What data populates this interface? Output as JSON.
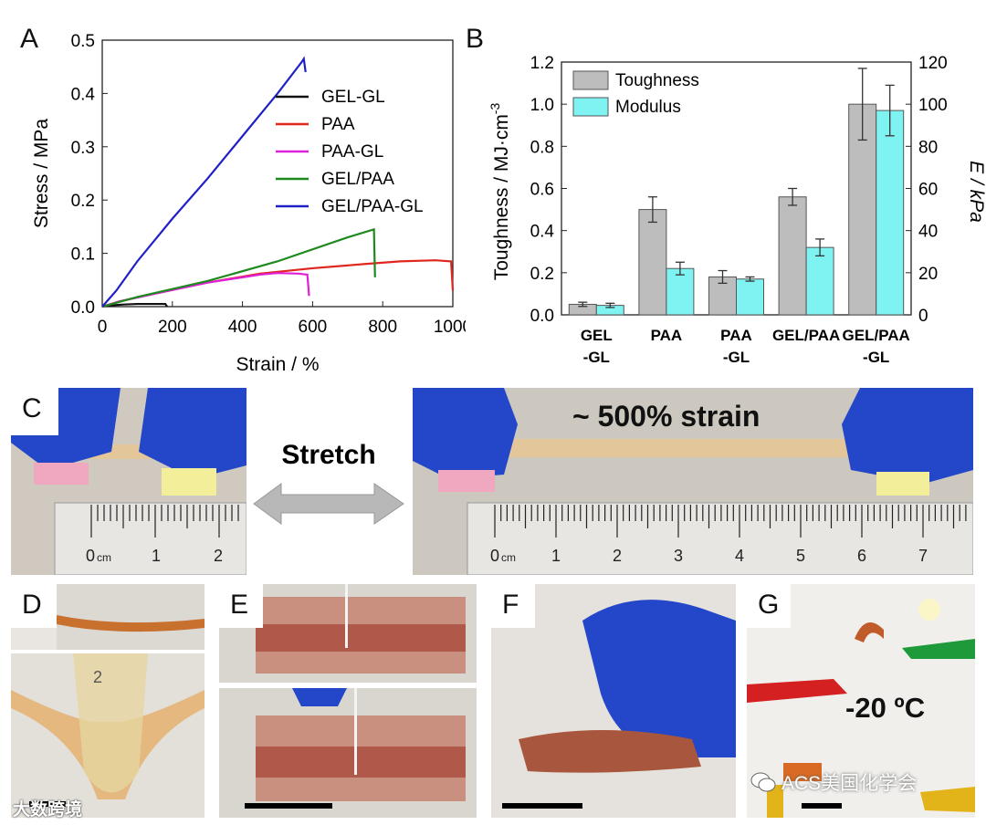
{
  "panels": {
    "A": "A",
    "B": "B",
    "C": "C",
    "D": "D",
    "E": "E",
    "F": "F",
    "G": "G"
  },
  "chart_data": [
    {
      "type": "line",
      "xlabel": "Strain / %",
      "ylabel": "Stress / MPa",
      "xlim": [
        0,
        1000
      ],
      "ylim": [
        0,
        0.5
      ],
      "xticks": [
        0,
        200,
        400,
        600,
        800,
        1000
      ],
      "yticks": [
        0.0,
        0.1,
        0.2,
        0.3,
        0.4,
        0.5
      ],
      "legend_position": "right",
      "series": [
        {
          "name": "GEL-GL",
          "color": "#111111",
          "x": [
            0,
            20,
            60,
            100,
            140,
            180,
            185
          ],
          "y": [
            0,
            0.002,
            0.004,
            0.005,
            0.005,
            0.005,
            0
          ]
        },
        {
          "name": "PAA",
          "color": "#e0261e",
          "x": [
            0,
            50,
            150,
            300,
            450,
            600,
            750,
            850,
            950,
            995,
            1000
          ],
          "y": [
            0,
            0.01,
            0.025,
            0.045,
            0.062,
            0.072,
            0.08,
            0.085,
            0.087,
            0.085,
            0.03
          ]
        },
        {
          "name": "PAA-GL",
          "color": "#e020d8",
          "x": [
            0,
            50,
            150,
            300,
            400,
            450,
            500,
            560,
            585,
            590
          ],
          "y": [
            0,
            0.01,
            0.024,
            0.045,
            0.055,
            0.06,
            0.063,
            0.062,
            0.06,
            0.02
          ]
        },
        {
          "name": "GEL/PAA",
          "color": "#1e8a1e",
          "x": [
            0,
            100,
            300,
            500,
            700,
            775,
            778
          ],
          "y": [
            0,
            0.018,
            0.048,
            0.085,
            0.13,
            0.145,
            0.055
          ]
        },
        {
          "name": "GEL/PAA-GL",
          "color": "#2020c8",
          "x": [
            0,
            40,
            100,
            200,
            300,
            400,
            500,
            570,
            575,
            580
          ],
          "y": [
            0,
            0.03,
            0.085,
            0.165,
            0.24,
            0.32,
            0.4,
            0.46,
            0.465,
            0.44
          ]
        }
      ]
    },
    {
      "type": "bar",
      "categories": [
        "GEL\n-GL",
        "PAA",
        "PAA\n-GL",
        "GEL/PAA",
        "GEL/PAA\n-GL"
      ],
      "ylabel": "Toughness / MJ·cm",
      "ylabel_sup": "-3",
      "y2label": "E / kPa",
      "ylim": [
        0,
        1.2
      ],
      "y2lim": [
        0,
        120
      ],
      "yticks": [
        0.0,
        0.2,
        0.4,
        0.6,
        0.8,
        1.0,
        1.2
      ],
      "y2ticks": [
        0,
        20,
        40,
        60,
        80,
        100,
        120
      ],
      "legend_position": "top-left",
      "series": [
        {
          "name": "Toughness",
          "color": "#bdbdbd",
          "axis": "left",
          "values": [
            0.05,
            0.5,
            0.18,
            0.56,
            1.0
          ],
          "errors": [
            0.01,
            0.06,
            0.03,
            0.04,
            0.17
          ]
        },
        {
          "name": "Modulus",
          "color": "#7ff2f2",
          "axis": "right",
          "values": [
            4.5,
            22,
            17,
            32,
            97
          ],
          "errors": [
            1,
            3,
            1,
            4,
            12
          ]
        }
      ]
    }
  ],
  "photos": {
    "c_center_label": "Stretch",
    "c_right_label": "~ 500% strain",
    "ruler_unit": "cm",
    "ruler_left_numbers": [
      "1",
      "2"
    ],
    "ruler_right_numbers": [
      "1",
      "2",
      "3",
      "4",
      "5",
      "6",
      "7"
    ],
    "ruler_zero": "0",
    "tube_mark": "2",
    "g_label": "-20 ºC",
    "watermark": "ACS美国化学会",
    "watermark_left": "大数跨境"
  },
  "colors": {
    "glove": "#2447c9",
    "gel": "#c0603a",
    "clip_red": "#d42020",
    "clip_green": "#1f9a3a",
    "clip_yellow": "#e2b41a"
  }
}
